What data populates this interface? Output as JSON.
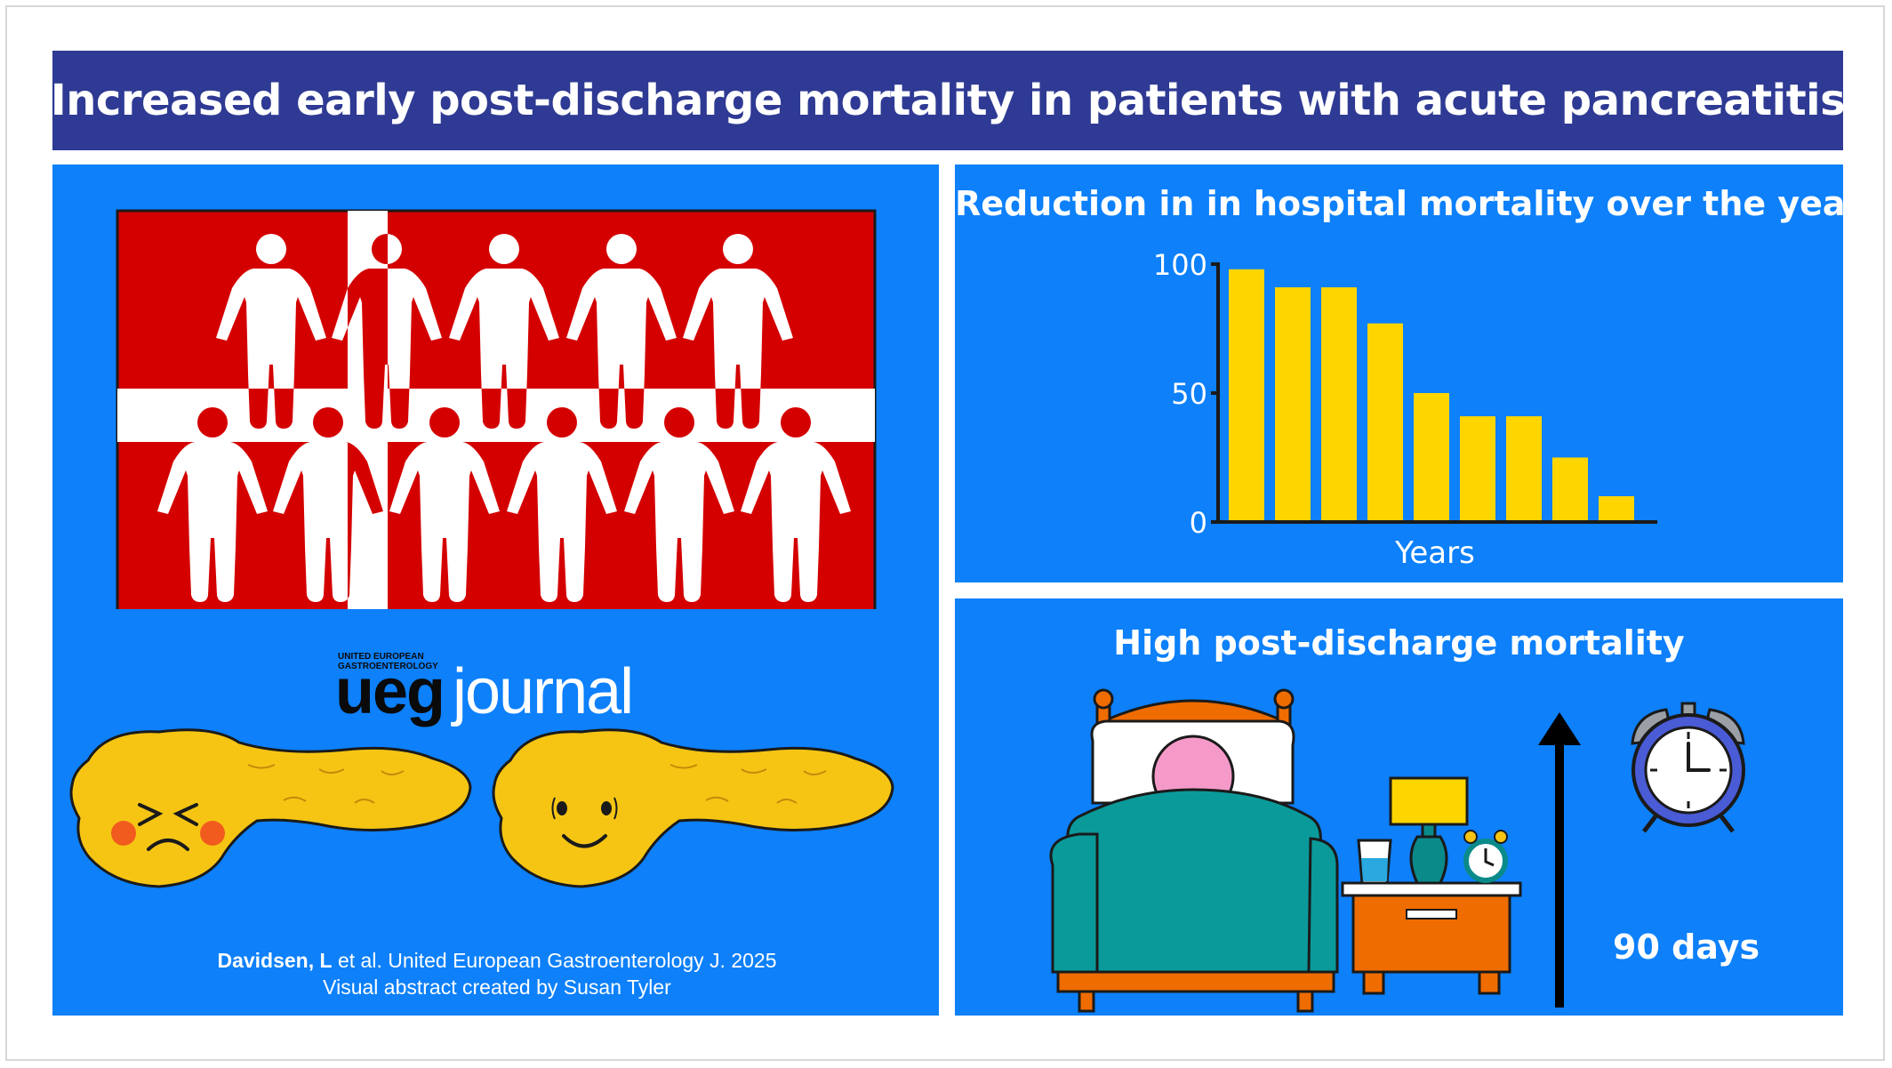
{
  "title": "Increased early post-discharge mortality in patients with acute pancreatitis",
  "left_panel": {
    "journal_small": "UNITED EUROPEAN GASTROENTEROLOGY",
    "journal_brand": "ueg",
    "journal_word": "journal",
    "citation_authors": "Davidsen, L",
    "citation_rest": " et al. United European Gastroenterology J. 2025",
    "credit": "Visual abstract created by Susan Tyler",
    "flag_colors": {
      "red": "#d40000",
      "cross": "#ffffff"
    },
    "icons": [
      "person-icon",
      "pancreas-sad-icon",
      "pancreas-happy-icon"
    ]
  },
  "chart_panel": {
    "title": "Reduction in in hospital mortality over the years"
  },
  "chart_data": {
    "type": "bar",
    "title": "Reduction in in hospital mortality over the years",
    "xlabel": "Years",
    "ylabel": "",
    "ylim": [
      0,
      100
    ],
    "yticks": [
      "100",
      "50",
      "0"
    ],
    "values": [
      98,
      91,
      91,
      77,
      50,
      41,
      41,
      25,
      10
    ],
    "bar_color": "#ffd500",
    "grid": false
  },
  "post_panel": {
    "title": "High post-discharge mortality",
    "days_label": "90 days",
    "icons": [
      "bed-icon",
      "nightstand-icon",
      "lamp-icon",
      "water-glass-icon",
      "alarm-clock-icon",
      "up-arrow-icon"
    ]
  },
  "colors": {
    "title_bar": "#2e3a93",
    "panel": "#0d80fa",
    "accent_yellow": "#ffd500"
  }
}
